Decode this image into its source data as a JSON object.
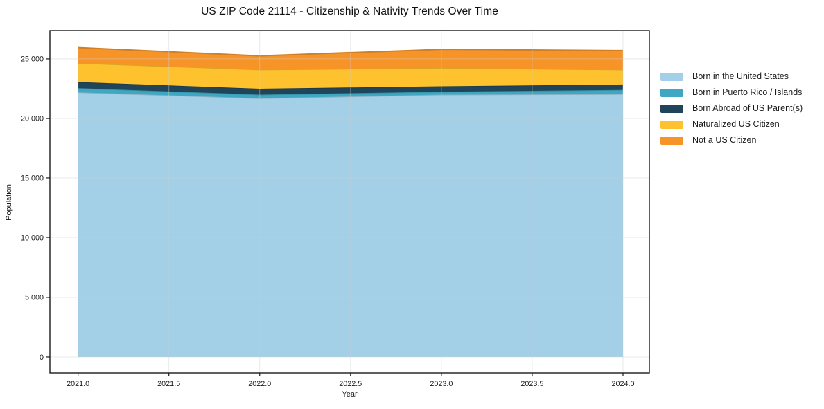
{
  "chart_data": {
    "type": "area",
    "stacked": true,
    "title": "US ZIP Code 21114 - Citizenship & Nativity Trends Over Time",
    "xlabel": "Year",
    "ylabel": "Population",
    "x": [
      2021,
      2022,
      2023,
      2024
    ],
    "series": [
      {
        "name": "Born in the United States",
        "color": "#a3cfe7",
        "values": [
          22200,
          21700,
          22000,
          22050
        ]
      },
      {
        "name": "Born in Puerto Rico / Islands",
        "color": "#3ea8c2",
        "values": [
          350,
          300,
          250,
          350
        ]
      },
      {
        "name": "Born Abroad of US Parent(s)",
        "color": "#20455a",
        "values": [
          500,
          500,
          450,
          450
        ]
      },
      {
        "name": "Naturalized US Citizen",
        "color": "#fdc22e",
        "values": [
          1600,
          1600,
          1550,
          1250
        ]
      },
      {
        "name": "Not a US Citizen",
        "color": "#f79428",
        "values": [
          1300,
          1150,
          1550,
          1600
        ]
      }
    ],
    "totals": [
      25950,
      25250,
      25800,
      25700
    ],
    "xticks": {
      "values": [
        2021.0,
        2021.5,
        2022.0,
        2022.5,
        2023.0,
        2023.5,
        2024.0
      ],
      "labels": [
        "2021.0",
        "2021.5",
        "2022.0",
        "2022.5",
        "2023.0",
        "2023.5",
        "2024.0"
      ]
    },
    "yticks": {
      "values": [
        0,
        5000,
        10000,
        15000,
        20000,
        25000
      ],
      "labels": [
        "0",
        "5,000",
        "10,000",
        "15,000",
        "20,000",
        "25,000"
      ]
    },
    "xlim": [
      2020.845,
      2024.145
    ],
    "ylim": [
      -1340,
      27380
    ],
    "grid": true,
    "legend_position": "right-outside",
    "frame_color": "#1a1a1a",
    "grid_color": "#cfcfcf",
    "tick_label_color": "#1a1a1a"
  }
}
